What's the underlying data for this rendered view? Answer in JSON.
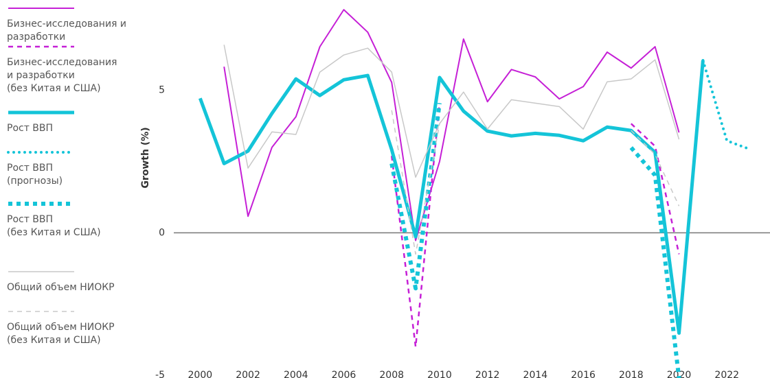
{
  "chart_data": {
    "type": "line",
    "y_label": "Growth (%)",
    "x": [
      2000,
      2001,
      2002,
      2003,
      2004,
      2005,
      2006,
      2007,
      2008,
      2009,
      2010,
      2011,
      2012,
      2013,
      2014,
      2015,
      2016,
      2017,
      2018,
      2019,
      2020,
      2021,
      2022,
      2023
    ],
    "xlim": [
      1998.9,
      2023.8
    ],
    "xticks": [
      2000,
      2002,
      2004,
      2006,
      2008,
      2010,
      2012,
      2014,
      2016,
      2018,
      2020,
      2022
    ],
    "ylim": [
      -5,
      8.17
    ],
    "yticks": [
      -5,
      0,
      5
    ],
    "series": [
      {
        "name": "Бизнес-исследования и разработки",
        "color": "#c51fd6",
        "style": "solid",
        "width": 2,
        "values": [
          null,
          5.83,
          0.58,
          3.0,
          4.07,
          6.53,
          7.83,
          7.04,
          5.28,
          -0.27,
          2.5,
          6.8,
          4.6,
          5.73,
          5.47,
          4.7,
          5.13,
          6.34,
          5.78,
          6.53,
          3.52,
          null,
          null,
          null
        ]
      },
      {
        "name": "Бизнес-исследования\nи разработки\n(без Китая и США)",
        "color": "#c51fd6",
        "style": "dashed",
        "width": 2.5,
        "values": [
          null,
          null,
          null,
          null,
          null,
          null,
          null,
          null,
          2.7,
          -4.0,
          4.55,
          null,
          null,
          null,
          null,
          null,
          null,
          null,
          3.83,
          3.04,
          -0.75,
          null,
          null,
          null
        ]
      },
      {
        "name": "Рост ВВП",
        "color": "#14c4d8",
        "style": "solid",
        "width": 5,
        "values": [
          4.72,
          2.43,
          2.87,
          4.19,
          5.4,
          4.82,
          5.37,
          5.52,
          2.92,
          -0.14,
          5.45,
          4.27,
          3.57,
          3.4,
          3.49,
          3.42,
          3.23,
          3.71,
          3.59,
          2.82,
          -3.52,
          6.05,
          null,
          null
        ]
      },
      {
        "name": "Рост ВВП\n(прогнозы)",
        "color": "#14c4d8",
        "style": "dotted",
        "width": 4,
        "values": [
          null,
          null,
          null,
          null,
          null,
          null,
          null,
          null,
          null,
          null,
          null,
          null,
          null,
          null,
          null,
          null,
          null,
          null,
          null,
          null,
          null,
          6.05,
          3.23,
          2.92
        ]
      },
      {
        "name": "Рост ВВП\n(без Китая и США)",
        "color": "#14c4d8",
        "style": "dotted-thick",
        "width": 6,
        "values": [
          null,
          null,
          null,
          null,
          null,
          null,
          null,
          null,
          2.43,
          -1.95,
          4.55,
          null,
          null,
          null,
          null,
          null,
          null,
          null,
          2.99,
          2.02,
          -5.1,
          null,
          null,
          null
        ]
      },
      {
        "name": "Общий объем НИОКР",
        "color": "#c8c8c8",
        "style": "solid",
        "width": 1.5,
        "values": [
          null,
          6.6,
          2.27,
          3.54,
          3.45,
          5.64,
          6.24,
          6.48,
          5.64,
          1.95,
          3.83,
          4.94,
          3.64,
          4.67,
          4.55,
          4.43,
          3.64,
          5.3,
          5.4,
          6.07,
          3.28,
          null,
          null,
          null
        ]
      },
      {
        "name": "Общий объем НИОКР\n(без Китая и США)",
        "color": "#c8c8c8",
        "style": "dashed",
        "width": 1.5,
        "values": [
          null,
          null,
          null,
          null,
          null,
          null,
          null,
          null,
          4.3,
          -0.75,
          3.83,
          null,
          null,
          null,
          null,
          null,
          null,
          null,
          3.59,
          2.75,
          0.94,
          null,
          null,
          null
        ]
      }
    ]
  }
}
